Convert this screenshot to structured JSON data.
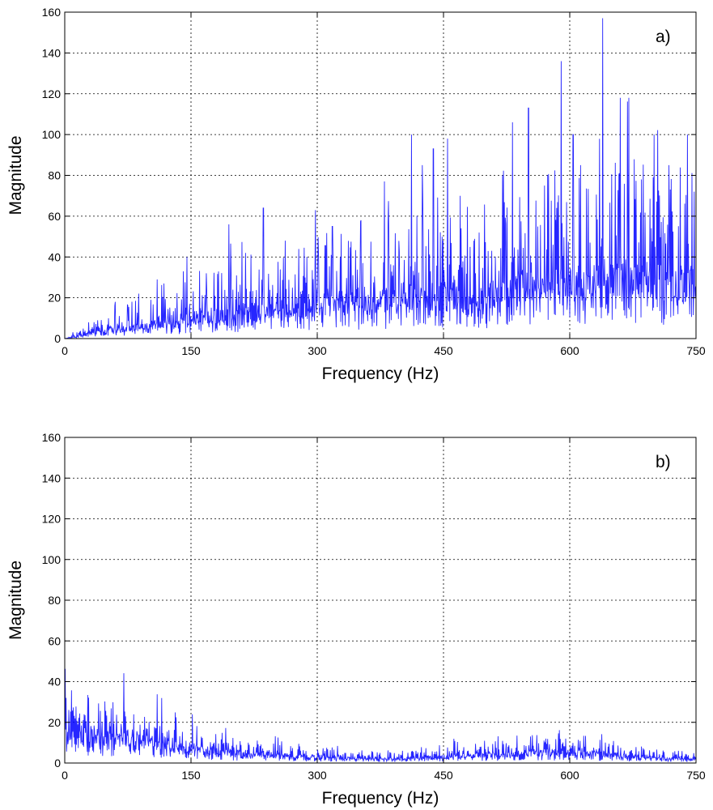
{
  "chart_data": [
    {
      "type": "line",
      "panel_label": "a)",
      "xlabel": "Frequency (Hz)",
      "ylabel": "Magnitude",
      "xlim": [
        0,
        750
      ],
      "ylim": [
        0,
        160
      ],
      "xticks": [
        0,
        150,
        300,
        450,
        600,
        750
      ],
      "yticks": [
        0,
        20,
        40,
        60,
        80,
        100,
        120,
        140,
        160
      ],
      "grid": true,
      "line_color": "#0000ff",
      "series": [
        {
          "x": [
            0,
            25,
            50,
            75,
            100,
            125,
            150,
            175,
            200,
            225,
            250,
            275,
            300,
            325,
            350,
            375,
            400,
            425,
            450,
            475,
            500,
            525,
            550,
            575,
            600,
            625,
            650,
            675,
            700,
            725,
            750
          ],
          "values": [
            0,
            2,
            4,
            5,
            6,
            8,
            10,
            10,
            12,
            14,
            14,
            15,
            16,
            17,
            17,
            18,
            19,
            20,
            21,
            20,
            20,
            24,
            25,
            25,
            26,
            27,
            28,
            30,
            28,
            25,
            28
          ],
          "peaks": [
            {
              "x": 60,
              "y": 18
            },
            {
              "x": 75,
              "y": 16
            },
            {
              "x": 110,
              "y": 29
            },
            {
              "x": 118,
              "y": 27
            },
            {
              "x": 145,
              "y": 40
            },
            {
              "x": 168,
              "y": 32
            },
            {
              "x": 195,
              "y": 56
            },
            {
              "x": 215,
              "y": 42
            },
            {
              "x": 236,
              "y": 64
            },
            {
              "x": 262,
              "y": 48
            },
            {
              "x": 298,
              "y": 63
            },
            {
              "x": 318,
              "y": 55
            },
            {
              "x": 352,
              "y": 58
            },
            {
              "x": 380,
              "y": 77
            },
            {
              "x": 412,
              "y": 100
            },
            {
              "x": 425,
              "y": 85
            },
            {
              "x": 438,
              "y": 93
            },
            {
              "x": 455,
              "y": 98
            },
            {
              "x": 470,
              "y": 70
            },
            {
              "x": 520,
              "y": 80
            },
            {
              "x": 532,
              "y": 106
            },
            {
              "x": 551,
              "y": 113
            },
            {
              "x": 570,
              "y": 75
            },
            {
              "x": 590,
              "y": 136
            },
            {
              "x": 604,
              "y": 100
            },
            {
              "x": 613,
              "y": 85
            },
            {
              "x": 639,
              "y": 157
            },
            {
              "x": 660,
              "y": 118
            },
            {
              "x": 670,
              "y": 118
            },
            {
              "x": 685,
              "y": 78
            },
            {
              "x": 700,
              "y": 100
            },
            {
              "x": 718,
              "y": 85
            },
            {
              "x": 740,
              "y": 100
            },
            {
              "x": 748,
              "y": 72
            }
          ]
        }
      ]
    },
    {
      "type": "line",
      "panel_label": "b)",
      "xlabel": "Frequency (Hz)",
      "ylabel": "Magnitude",
      "xlim": [
        0,
        750
      ],
      "ylim": [
        0,
        160
      ],
      "xticks": [
        0,
        150,
        300,
        450,
        600,
        750
      ],
      "yticks": [
        0,
        20,
        40,
        60,
        80,
        100,
        120,
        140,
        160
      ],
      "grid": true,
      "line_color": "#0000ff",
      "series": [
        {
          "x": [
            0,
            25,
            50,
            75,
            100,
            125,
            150,
            175,
            200,
            225,
            250,
            275,
            300,
            325,
            350,
            375,
            400,
            425,
            450,
            475,
            500,
            525,
            550,
            575,
            600,
            625,
            650,
            675,
            700,
            725,
            750
          ],
          "values": [
            13,
            14,
            12,
            13,
            11,
            9,
            7,
            6,
            5,
            4,
            4,
            3.5,
            3,
            2.5,
            2,
            2,
            2,
            2.5,
            3,
            3.5,
            4,
            4.5,
            5,
            5,
            5,
            4.5,
            4,
            3,
            2.5,
            2,
            1.5
          ],
          "peaks": []
        }
      ]
    }
  ]
}
